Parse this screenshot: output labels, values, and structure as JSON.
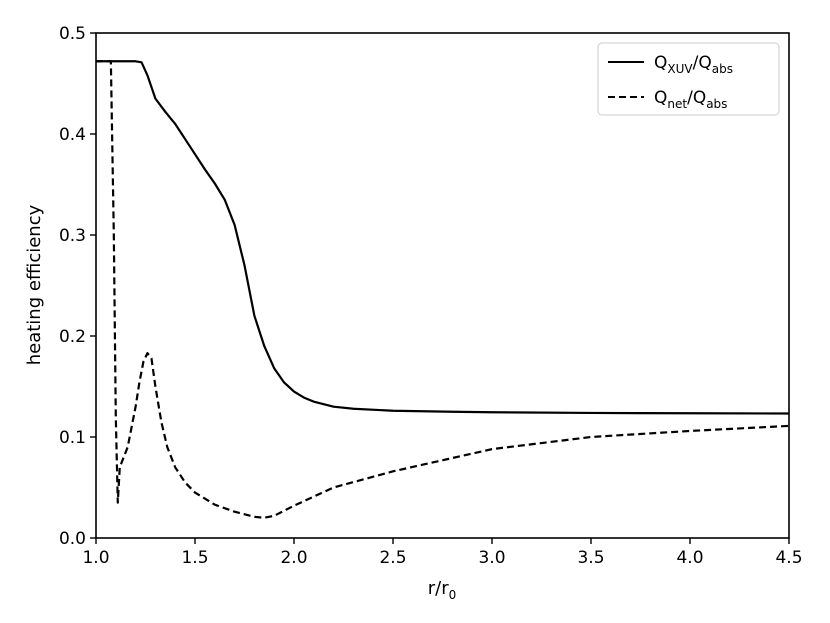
{
  "chart_data": {
    "type": "line",
    "title": "",
    "xlabel": {
      "base": "r/r",
      "sub": "0"
    },
    "ylabel": "heating efficiency",
    "xlim": [
      1.0,
      4.5
    ],
    "ylim": [
      0.0,
      0.5
    ],
    "xticks": [
      "1.0",
      "1.5",
      "2.0",
      "2.5",
      "3.0",
      "3.5",
      "4.0",
      "4.5"
    ],
    "yticks": [
      "0.0",
      "0.1",
      "0.2",
      "0.3",
      "0.4",
      "0.5"
    ],
    "grid": false,
    "legend_position": "top-right",
    "series": [
      {
        "name": {
          "a": "Q",
          "a_sub": "XUV",
          "b": "/Q",
          "b_sub": "abs"
        },
        "style": "solid",
        "color": "#000000",
        "x": [
          1.0,
          1.05,
          1.1,
          1.15,
          1.2,
          1.23,
          1.26,
          1.3,
          1.35,
          1.4,
          1.45,
          1.5,
          1.55,
          1.6,
          1.65,
          1.7,
          1.75,
          1.8,
          1.85,
          1.9,
          1.95,
          2.0,
          2.05,
          2.1,
          2.2,
          2.3,
          2.5,
          2.8,
          3.0,
          3.5,
          4.0,
          4.5
        ],
        "y": [
          0.472,
          0.472,
          0.472,
          0.472,
          0.472,
          0.471,
          0.458,
          0.435,
          0.422,
          0.41,
          0.395,
          0.38,
          0.365,
          0.351,
          0.335,
          0.31,
          0.27,
          0.22,
          0.19,
          0.168,
          0.154,
          0.145,
          0.139,
          0.135,
          0.13,
          0.128,
          0.126,
          0.125,
          0.1245,
          0.1238,
          0.1235,
          0.1233
        ]
      },
      {
        "name": {
          "a": "Q",
          "a_sub": "net",
          "b": "/Q",
          "b_sub": "abs"
        },
        "style": "dashed",
        "color": "#000000",
        "x": [
          1.0,
          1.05,
          1.075,
          1.09,
          1.1,
          1.11,
          1.12,
          1.14,
          1.16,
          1.18,
          1.2,
          1.22,
          1.24,
          1.26,
          1.28,
          1.3,
          1.33,
          1.36,
          1.4,
          1.45,
          1.5,
          1.6,
          1.7,
          1.8,
          1.85,
          1.9,
          2.0,
          2.2,
          2.5,
          3.0,
          3.5,
          4.0,
          4.5
        ],
        "y": [
          0.472,
          0.472,
          0.472,
          0.3,
          0.12,
          0.035,
          0.07,
          0.08,
          0.09,
          0.11,
          0.13,
          0.155,
          0.175,
          0.183,
          0.178,
          0.15,
          0.115,
          0.09,
          0.07,
          0.055,
          0.045,
          0.033,
          0.026,
          0.021,
          0.02,
          0.022,
          0.032,
          0.05,
          0.066,
          0.088,
          0.1,
          0.106,
          0.111
        ]
      }
    ]
  }
}
